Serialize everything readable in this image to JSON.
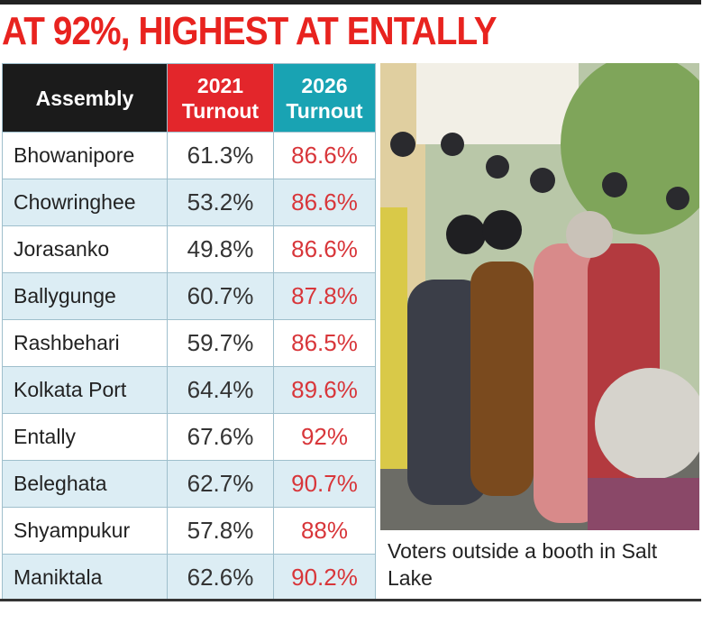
{
  "title": "AT 92%, HIGHEST AT ENTALLY",
  "table": {
    "header": [
      "Assembly",
      "2021 Turnout",
      "2026 Turnout"
    ],
    "rows": [
      [
        "Bhowanipore",
        "61.3%",
        "86.6%"
      ],
      [
        "Chowringhee",
        "53.2%",
        "86.6%"
      ],
      [
        "Jorasanko",
        "49.8%",
        "86.6%"
      ],
      [
        "Ballygunge",
        "60.7%",
        "87.8%"
      ],
      [
        "Rashbehari",
        "59.7%",
        "86.5%"
      ],
      [
        "Kolkata Port",
        "64.4%",
        "89.6%"
      ],
      [
        "Entally",
        "67.6%",
        "92%"
      ],
      [
        "Beleghata",
        "62.7%",
        "90.7%"
      ],
      [
        "Shyampukur",
        "57.8%",
        "88%"
      ],
      [
        "Maniktala",
        "62.6%",
        "90.2%"
      ]
    ]
  },
  "photo": {
    "caption": "Voters outside a booth in Salt Lake"
  }
}
